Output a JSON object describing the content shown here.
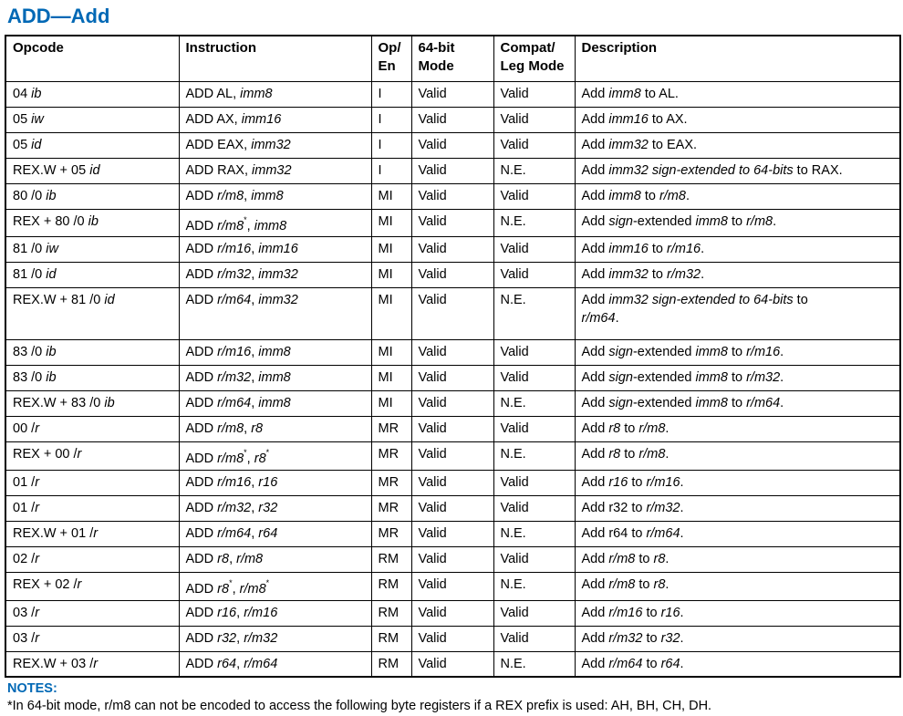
{
  "title": "ADD—Add",
  "colors": {
    "accent": "#0068b5",
    "border": "#000000",
    "text": "#000000"
  },
  "table": {
    "headers": [
      "Opcode",
      "Instruction",
      "Op/\nEn",
      "64-bit\nMode",
      "Compat/\nLeg Mode",
      "Description"
    ],
    "rows": [
      {
        "opcode": [
          {
            "t": "04 "
          },
          {
            "t": "ib",
            "i": true
          }
        ],
        "instruction": [
          {
            "t": "ADD AL, "
          },
          {
            "t": "imm8",
            "i": true
          }
        ],
        "op_en": "I",
        "mode64": "Valid",
        "compat": "Valid",
        "description": [
          {
            "t": "Add "
          },
          {
            "t": "imm8",
            "i": true
          },
          {
            "t": " to AL."
          }
        ]
      },
      {
        "opcode": [
          {
            "t": "05 "
          },
          {
            "t": "iw",
            "i": true
          }
        ],
        "instruction": [
          {
            "t": "ADD AX, "
          },
          {
            "t": "imm16",
            "i": true
          }
        ],
        "op_en": "I",
        "mode64": "Valid",
        "compat": "Valid",
        "description": [
          {
            "t": "Add "
          },
          {
            "t": "imm16",
            "i": true
          },
          {
            "t": " to AX."
          }
        ]
      },
      {
        "opcode": [
          {
            "t": "05 "
          },
          {
            "t": "id",
            "i": true
          }
        ],
        "instruction": [
          {
            "t": "ADD EAX, "
          },
          {
            "t": "imm32",
            "i": true
          }
        ],
        "op_en": "I",
        "mode64": "Valid",
        "compat": "Valid",
        "description": [
          {
            "t": "Add "
          },
          {
            "t": "imm32",
            "i": true
          },
          {
            "t": " to EAX."
          }
        ]
      },
      {
        "opcode": [
          {
            "t": "REX.W + 05 "
          },
          {
            "t": "id",
            "i": true
          }
        ],
        "instruction": [
          {
            "t": "ADD RAX, "
          },
          {
            "t": "imm32",
            "i": true
          }
        ],
        "op_en": "I",
        "mode64": "Valid",
        "compat": "N.E.",
        "description": [
          {
            "t": "Add "
          },
          {
            "t": "imm32 sign-extended to 64-bits",
            "i": true
          },
          {
            "t": " to RAX."
          }
        ]
      },
      {
        "opcode": [
          {
            "t": "80 /0 "
          },
          {
            "t": "ib",
            "i": true
          }
        ],
        "instruction": [
          {
            "t": "ADD "
          },
          {
            "t": "r/m8",
            "i": true
          },
          {
            "t": ", "
          },
          {
            "t": "imm8",
            "i": true
          }
        ],
        "op_en": "MI",
        "mode64": "Valid",
        "compat": "Valid",
        "description": [
          {
            "t": "Add "
          },
          {
            "t": "imm8",
            "i": true
          },
          {
            "t": " to "
          },
          {
            "t": "r/m8",
            "i": true
          },
          {
            "t": "."
          }
        ]
      },
      {
        "opcode": [
          {
            "t": "REX + 80 /0 "
          },
          {
            "t": "ib",
            "i": true
          }
        ],
        "instruction": [
          {
            "t": "ADD "
          },
          {
            "t": "r/m8",
            "i": true
          },
          {
            "t": "*",
            "sup": true
          },
          {
            "t": ", "
          },
          {
            "t": "imm8",
            "i": true
          }
        ],
        "op_en": "MI",
        "mode64": "Valid",
        "compat": "N.E.",
        "description": [
          {
            "t": "Add "
          },
          {
            "t": "sign",
            "i": true
          },
          {
            "t": "-extended "
          },
          {
            "t": "imm8",
            "i": true
          },
          {
            "t": " to "
          },
          {
            "t": "r/m8",
            "i": true
          },
          {
            "t": "."
          }
        ]
      },
      {
        "opcode": [
          {
            "t": "81 /0 "
          },
          {
            "t": "iw",
            "i": true
          }
        ],
        "instruction": [
          {
            "t": "ADD "
          },
          {
            "t": "r/m16",
            "i": true
          },
          {
            "t": ", "
          },
          {
            "t": "imm16",
            "i": true
          }
        ],
        "op_en": "MI",
        "mode64": "Valid",
        "compat": "Valid",
        "description": [
          {
            "t": "Add "
          },
          {
            "t": "imm16",
            "i": true
          },
          {
            "t": " to "
          },
          {
            "t": "r/m16",
            "i": true
          },
          {
            "t": "."
          }
        ]
      },
      {
        "opcode": [
          {
            "t": "81 /0 "
          },
          {
            "t": "id",
            "i": true
          }
        ],
        "instruction": [
          {
            "t": "ADD "
          },
          {
            "t": "r/m32",
            "i": true
          },
          {
            "t": ", "
          },
          {
            "t": "imm32",
            "i": true
          }
        ],
        "op_en": "MI",
        "mode64": "Valid",
        "compat": "Valid",
        "description": [
          {
            "t": "Add "
          },
          {
            "t": "imm32",
            "i": true
          },
          {
            "t": " to "
          },
          {
            "t": "r/m32",
            "i": true
          },
          {
            "t": "."
          }
        ]
      },
      {
        "tall": true,
        "opcode": [
          {
            "t": "REX.W + 81 /0 "
          },
          {
            "t": "id",
            "i": true
          }
        ],
        "instruction": [
          {
            "t": "ADD "
          },
          {
            "t": "r/m64",
            "i": true
          },
          {
            "t": ", "
          },
          {
            "t": "imm32",
            "i": true
          }
        ],
        "op_en": "MI",
        "mode64": "Valid",
        "compat": "N.E.",
        "description": [
          {
            "t": "Add "
          },
          {
            "t": "imm32 sign-extended to 64-bits",
            "i": true
          },
          {
            "t": " to"
          },
          {
            "br": true
          },
          {
            "t": "r/m64",
            "i": true
          },
          {
            "t": "."
          }
        ]
      },
      {
        "opcode": [
          {
            "t": "83 /0 "
          },
          {
            "t": "ib",
            "i": true
          }
        ],
        "instruction": [
          {
            "t": "ADD "
          },
          {
            "t": "r/m16",
            "i": true
          },
          {
            "t": ", "
          },
          {
            "t": "imm8",
            "i": true
          }
        ],
        "op_en": "MI",
        "mode64": "Valid",
        "compat": "Valid",
        "description": [
          {
            "t": "Add "
          },
          {
            "t": "sign",
            "i": true
          },
          {
            "t": "-extended "
          },
          {
            "t": "imm8",
            "i": true
          },
          {
            "t": " to "
          },
          {
            "t": "r/m16",
            "i": true
          },
          {
            "t": "."
          }
        ]
      },
      {
        "opcode": [
          {
            "t": "83 /0 "
          },
          {
            "t": "ib",
            "i": true
          }
        ],
        "instruction": [
          {
            "t": "ADD "
          },
          {
            "t": "r/m32",
            "i": true
          },
          {
            "t": ", "
          },
          {
            "t": "imm8",
            "i": true
          }
        ],
        "op_en": "MI",
        "mode64": "Valid",
        "compat": "Valid",
        "description": [
          {
            "t": "Add "
          },
          {
            "t": "sign",
            "i": true
          },
          {
            "t": "-extended "
          },
          {
            "t": "imm8",
            "i": true
          },
          {
            "t": " to "
          },
          {
            "t": "r/m32",
            "i": true
          },
          {
            "t": "."
          }
        ]
      },
      {
        "opcode": [
          {
            "t": "REX.W + 83 /0 "
          },
          {
            "t": "ib",
            "i": true
          }
        ],
        "instruction": [
          {
            "t": "ADD "
          },
          {
            "t": "r/m64",
            "i": true
          },
          {
            "t": ", "
          },
          {
            "t": "imm8",
            "i": true
          }
        ],
        "op_en": "MI",
        "mode64": "Valid",
        "compat": "N.E.",
        "description": [
          {
            "t": "Add "
          },
          {
            "t": "sign",
            "i": true
          },
          {
            "t": "-extended "
          },
          {
            "t": "imm8",
            "i": true
          },
          {
            "t": " to "
          },
          {
            "t": "r/m64",
            "i": true
          },
          {
            "t": "."
          }
        ]
      },
      {
        "opcode": [
          {
            "t": "00 /"
          },
          {
            "t": "r",
            "i": true
          }
        ],
        "instruction": [
          {
            "t": "ADD "
          },
          {
            "t": "r/m8",
            "i": true
          },
          {
            "t": ", "
          },
          {
            "t": "r8",
            "i": true
          }
        ],
        "op_en": "MR",
        "mode64": "Valid",
        "compat": "Valid",
        "description": [
          {
            "t": "Add "
          },
          {
            "t": "r8",
            "i": true
          },
          {
            "t": " to "
          },
          {
            "t": "r/m8",
            "i": true
          },
          {
            "t": "."
          }
        ]
      },
      {
        "opcode": [
          {
            "t": "REX + 00 /"
          },
          {
            "t": "r",
            "i": true
          }
        ],
        "instruction": [
          {
            "t": "ADD "
          },
          {
            "t": "r/m8",
            "i": true
          },
          {
            "t": "*",
            "sup": true
          },
          {
            "t": ", "
          },
          {
            "t": "r8",
            "i": true
          },
          {
            "t": "*",
            "sup": true
          }
        ],
        "op_en": "MR",
        "mode64": "Valid",
        "compat": "N.E.",
        "description": [
          {
            "t": "Add "
          },
          {
            "t": "r8",
            "i": true
          },
          {
            "t": " to "
          },
          {
            "t": "r/m8",
            "i": true
          },
          {
            "t": "."
          }
        ]
      },
      {
        "opcode": [
          {
            "t": "01 /"
          },
          {
            "t": "r",
            "i": true
          }
        ],
        "instruction": [
          {
            "t": "ADD "
          },
          {
            "t": "r/m16",
            "i": true
          },
          {
            "t": ", "
          },
          {
            "t": "r16",
            "i": true
          }
        ],
        "op_en": "MR",
        "mode64": "Valid",
        "compat": "Valid",
        "description": [
          {
            "t": "Add "
          },
          {
            "t": "r16",
            "i": true
          },
          {
            "t": " to "
          },
          {
            "t": "r/m16",
            "i": true
          },
          {
            "t": "."
          }
        ]
      },
      {
        "opcode": [
          {
            "t": "01 /"
          },
          {
            "t": "r",
            "i": true
          }
        ],
        "instruction": [
          {
            "t": "ADD "
          },
          {
            "t": "r/m32",
            "i": true
          },
          {
            "t": ", "
          },
          {
            "t": "r32",
            "i": true
          }
        ],
        "op_en": "MR",
        "mode64": "Valid",
        "compat": "Valid",
        "description": [
          {
            "t": "Add r32 to "
          },
          {
            "t": "r/m32",
            "i": true
          },
          {
            "t": "."
          }
        ]
      },
      {
        "opcode": [
          {
            "t": "REX.W + 01 /"
          },
          {
            "t": "r",
            "i": true
          }
        ],
        "instruction": [
          {
            "t": "ADD "
          },
          {
            "t": "r/m64",
            "i": true
          },
          {
            "t": ", "
          },
          {
            "t": "r64",
            "i": true
          }
        ],
        "op_en": "MR",
        "mode64": "Valid",
        "compat": "N.E.",
        "description": [
          {
            "t": "Add r64 to "
          },
          {
            "t": "r/m64",
            "i": true
          },
          {
            "t": "."
          }
        ]
      },
      {
        "opcode": [
          {
            "t": "02 /"
          },
          {
            "t": "r",
            "i": true
          }
        ],
        "instruction": [
          {
            "t": "ADD "
          },
          {
            "t": "r8",
            "i": true
          },
          {
            "t": ", "
          },
          {
            "t": "r/m8",
            "i": true
          }
        ],
        "op_en": "RM",
        "mode64": "Valid",
        "compat": "Valid",
        "description": [
          {
            "t": "Add "
          },
          {
            "t": "r/m8",
            "i": true
          },
          {
            "t": " to "
          },
          {
            "t": "r8",
            "i": true
          },
          {
            "t": "."
          }
        ]
      },
      {
        "opcode": [
          {
            "t": "REX + 02 /"
          },
          {
            "t": "r",
            "i": true
          }
        ],
        "instruction": [
          {
            "t": "ADD "
          },
          {
            "t": "r8",
            "i": true
          },
          {
            "t": "*",
            "sup": true
          },
          {
            "t": ", "
          },
          {
            "t": "r/m8",
            "i": true
          },
          {
            "t": "*",
            "sup": true
          }
        ],
        "op_en": "RM",
        "mode64": "Valid",
        "compat": "N.E.",
        "description": [
          {
            "t": "Add "
          },
          {
            "t": "r/m8",
            "i": true
          },
          {
            "t": " to "
          },
          {
            "t": "r8",
            "i": true
          },
          {
            "t": "."
          }
        ]
      },
      {
        "opcode": [
          {
            "t": "03 /"
          },
          {
            "t": "r",
            "i": true
          }
        ],
        "instruction": [
          {
            "t": "ADD "
          },
          {
            "t": "r16",
            "i": true
          },
          {
            "t": ", "
          },
          {
            "t": "r/m16",
            "i": true
          }
        ],
        "op_en": "RM",
        "mode64": "Valid",
        "compat": "Valid",
        "description": [
          {
            "t": "Add "
          },
          {
            "t": "r/m16",
            "i": true
          },
          {
            "t": " to "
          },
          {
            "t": "r16",
            "i": true
          },
          {
            "t": "."
          }
        ]
      },
      {
        "opcode": [
          {
            "t": "03 /"
          },
          {
            "t": "r",
            "i": true
          }
        ],
        "instruction": [
          {
            "t": "ADD "
          },
          {
            "t": "r32",
            "i": true
          },
          {
            "t": ", "
          },
          {
            "t": "r/m32",
            "i": true
          }
        ],
        "op_en": "RM",
        "mode64": "Valid",
        "compat": "Valid",
        "description": [
          {
            "t": "Add "
          },
          {
            "t": "r/m32",
            "i": true
          },
          {
            "t": " to "
          },
          {
            "t": "r32",
            "i": true
          },
          {
            "t": "."
          }
        ]
      },
      {
        "opcode": [
          {
            "t": "REX.W + 03 /"
          },
          {
            "t": "r",
            "i": true
          }
        ],
        "instruction": [
          {
            "t": "ADD "
          },
          {
            "t": "r64",
            "i": true
          },
          {
            "t": ", "
          },
          {
            "t": "r/m64",
            "i": true
          }
        ],
        "op_en": "RM",
        "mode64": "Valid",
        "compat": "N.E.",
        "description": [
          {
            "t": "Add "
          },
          {
            "t": "r/m64",
            "i": true
          },
          {
            "t": " to "
          },
          {
            "t": "r64",
            "i": true
          },
          {
            "t": "."
          }
        ]
      }
    ]
  },
  "notes": {
    "label": "NOTES:",
    "note1": "*In 64-bit mode, r/m8 can not be encoded to access the following byte registers if a REX prefix is used: AH, BH, CH, DH."
  }
}
